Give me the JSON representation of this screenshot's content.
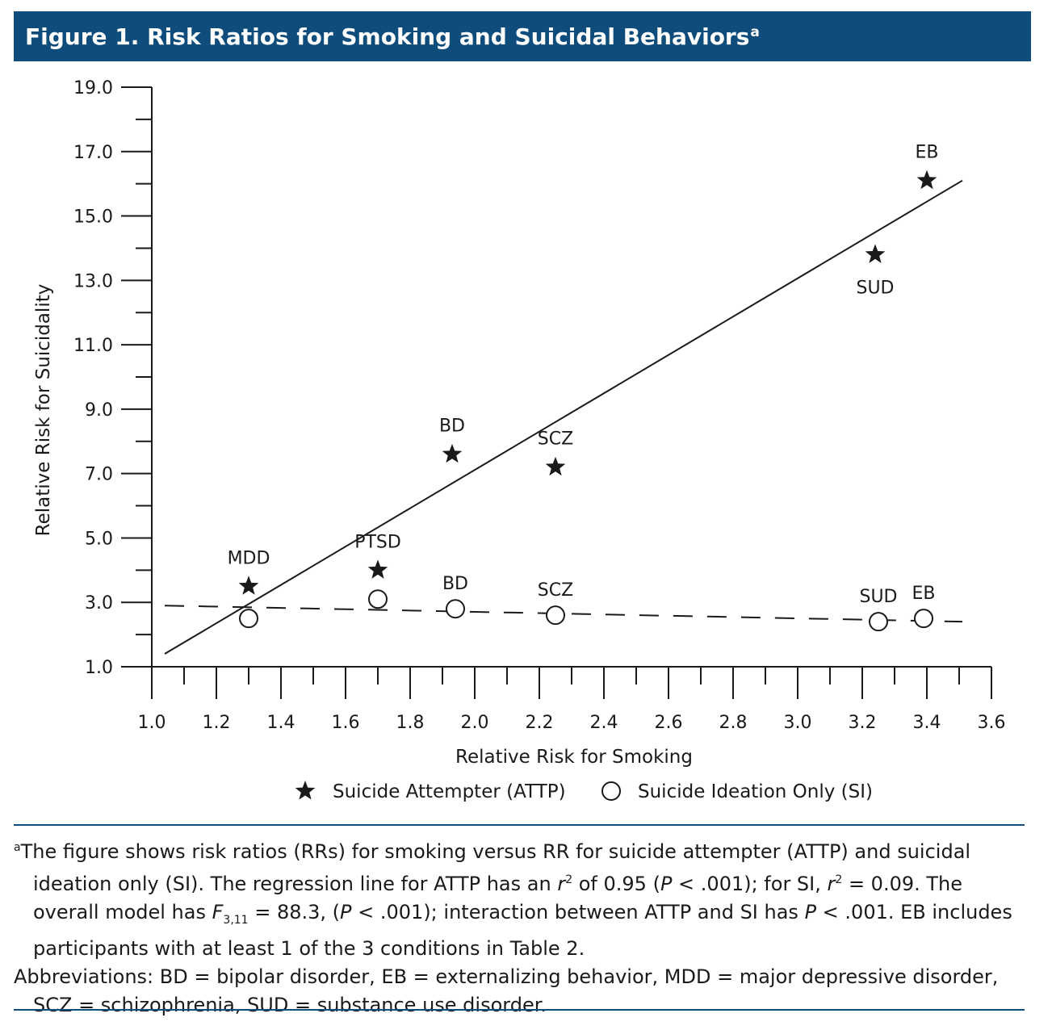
{
  "figure": {
    "title": "Figure 1. Risk Ratios for Smoking and Suicidal Behaviors",
    "title_sup": "a",
    "colors": {
      "banner": "#0e4c7c",
      "text": "#1a1a1a"
    }
  },
  "chart_data": {
    "type": "scatter",
    "xlabel": "Relative Risk for Smoking",
    "ylabel": "Relative Risk for Suicidality",
    "xlim": [
      1.0,
      3.6
    ],
    "ylim": [
      1.0,
      19.0
    ],
    "x_ticks": [
      "1.0",
      "1.2",
      "1.4",
      "1.6",
      "1.8",
      "2.0",
      "2.2",
      "2.4",
      "2.6",
      "2.8",
      "3.0",
      "3.2",
      "3.4",
      "3.6"
    ],
    "y_ticks": [
      "1.0",
      "3.0",
      "5.0",
      "7.0",
      "9.0",
      "11.0",
      "13.0",
      "15.0",
      "17.0",
      "19.0"
    ],
    "legend_position": "bottom",
    "series": [
      {
        "name": "Suicide Attempter (ATTP)",
        "marker": "star",
        "points": [
          {
            "label": "MDD",
            "x": 1.3,
            "y": 3.5
          },
          {
            "label": "PTSD",
            "x": 1.7,
            "y": 4.0
          },
          {
            "label": "BD",
            "x": 1.93,
            "y": 7.6
          },
          {
            "label": "SCZ",
            "x": 2.25,
            "y": 7.2
          },
          {
            "label": "SUD",
            "x": 3.24,
            "y": 13.8
          },
          {
            "label": "EB",
            "x": 3.4,
            "y": 16.1
          }
        ],
        "regression": {
          "style": "solid",
          "from": [
            1.04,
            1.4
          ],
          "to": [
            3.51,
            16.1
          ]
        }
      },
      {
        "name": "Suicide Ideation Only (SI)",
        "marker": "circle",
        "points": [
          {
            "label": "",
            "x": 1.3,
            "y": 2.5
          },
          {
            "label": "",
            "x": 1.7,
            "y": 3.1
          },
          {
            "label": "BD",
            "x": 1.94,
            "y": 2.8
          },
          {
            "label": "SCZ",
            "x": 2.25,
            "y": 2.6
          },
          {
            "label": "SUD",
            "x": 3.25,
            "y": 2.4
          },
          {
            "label": "EB",
            "x": 3.39,
            "y": 2.5
          }
        ],
        "regression": {
          "style": "dashed",
          "from": [
            1.04,
            2.9
          ],
          "to": [
            3.51,
            2.4
          ]
        }
      }
    ]
  },
  "footnote": {
    "a_sup": "a",
    "p1_a": "The figure shows risk ratios (RRs) for smoking versus RR for suicide attempter (ATTP) and suicidal ideation only (SI). The regression line for ATTP has an ",
    "p1_r": "r",
    "p1_r_sup": "2",
    "p1_b": " of 0.95 (",
    "p1_P1": "P",
    "p1_c": " < .001); for SI, ",
    "p1_r2": "r",
    "p1_r2_sup": "2",
    "p1_d": " = 0.09. The overall model has ",
    "p1_F": "F",
    "p1_F_sub": "3,11",
    "p1_e": " = 88.3, (",
    "p1_P2": "P",
    "p1_f": " < .001); interaction between ATTP and SI has ",
    "p1_P3": "P",
    "p1_g": " < .001. EB includes participants with at least 1 of the 3 conditions in Table 2.",
    "p2": "Abbreviations: BD = bipolar disorder, EB = externalizing behavior, MDD = major depressive disorder, SCZ = schizophrenia, SUD = substance use disorder."
  }
}
